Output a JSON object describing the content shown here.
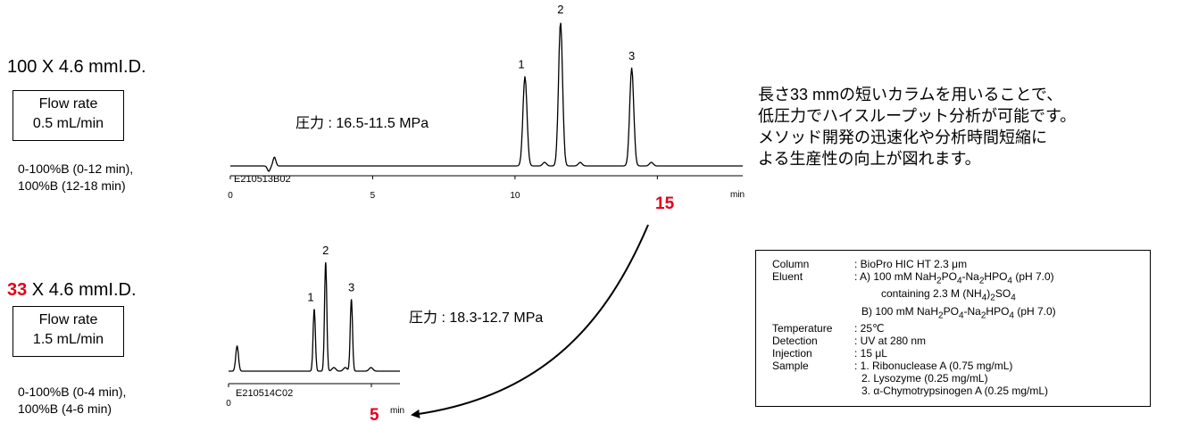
{
  "top": {
    "column_title": "100 X 4.6 mmI.D.",
    "flow_line1": "Flow rate",
    "flow_line2": "0.5 mL/min",
    "gradient_line1": "0-100%B (0-12 min),",
    "gradient_line2": "100%B (12-18 min)",
    "pressure": "圧力 : 16.5-11.5 MPa",
    "highlight_time": "15"
  },
  "bottom": {
    "column_length": "33",
    "column_rest": " X 4.6 mmI.D.",
    "flow_line1": "Flow rate",
    "flow_line2": "1.5 mL/min",
    "gradient_line1": "0-100%B (0-4 min),",
    "gradient_line2": "100%B (4-6 min)",
    "pressure": "圧力 : 18.3-12.7 MPa",
    "highlight_time": "5"
  },
  "description": [
    "長さ33 mmの短いカラムを用いることで、",
    "低圧力でハイスループット分析が可能です。",
    "メソッド開発の迅速化や分析時間短縮に",
    "よる生産性の向上が図れます。"
  ],
  "conditions": {
    "column_label": "Column",
    "column_value": ": BioPro HIC HT 2.3 μm",
    "eluent_label": "Eluent",
    "eluent_a_prefix": ": A) 100 mM NaH",
    "eluent_a_mid": "PO",
    "eluent_a_mid2": "-Na",
    "eluent_a_mid3": "HPO",
    "eluent_a_suffix": " (pH 7.0)",
    "eluent_a2_prefix": "containing 2.3 M (NH",
    "eluent_a2_mid": ")",
    "eluent_a2_suffix": "SO",
    "eluent_b_prefix": "B) 100 mM NaH",
    "eluent_b_suffix": " (pH 7.0)",
    "sub_2": "2",
    "sub_4": "4",
    "temperature_label": "Temperature",
    "temperature_value": ": 25℃",
    "detection_label": "Detection",
    "detection_value": ": UV at 280 nm",
    "injection_label": "Injection",
    "injection_value": ": 15 μL",
    "sample_label": "Sample",
    "sample_1": ": 1. Ribonuclease A (0.75 mg/mL)",
    "sample_2": "2. Lysozyme (0.25 mg/mL)",
    "sample_3": "3. α-Chymotrypsinogen A (0.25 mg/mL)"
  },
  "colors": {
    "accent_red": "#e3001b",
    "trace": "#000000"
  },
  "chart_data": [
    {
      "type": "line",
      "xlabel": "min",
      "ylabel": "",
      "xlim": [
        0,
        18
      ],
      "ticks": [
        0,
        5,
        10,
        15
      ],
      "tick_labels": [
        "0",
        "5",
        "10",
        ""
      ],
      "sample_id": "E210513B02",
      "peaks": [
        {
          "label": "1",
          "time": 10.35,
          "height": 0.62
        },
        {
          "label": "2",
          "time": 11.6,
          "height": 1.0
        },
        {
          "label": "3",
          "time": 14.1,
          "height": 0.68
        }
      ]
    },
    {
      "type": "line",
      "xlabel": "min",
      "ylabel": "",
      "xlim": [
        0,
        6
      ],
      "ticks": [
        0,
        5
      ],
      "tick_labels": [
        "0",
        ""
      ],
      "sample_id": "E210514C02",
      "peaks": [
        {
          "label": "1",
          "time": 3.0,
          "height": 0.57
        },
        {
          "label": "2",
          "time": 3.4,
          "height": 1.0
        },
        {
          "label": "3",
          "time": 4.3,
          "height": 0.66
        }
      ]
    }
  ]
}
